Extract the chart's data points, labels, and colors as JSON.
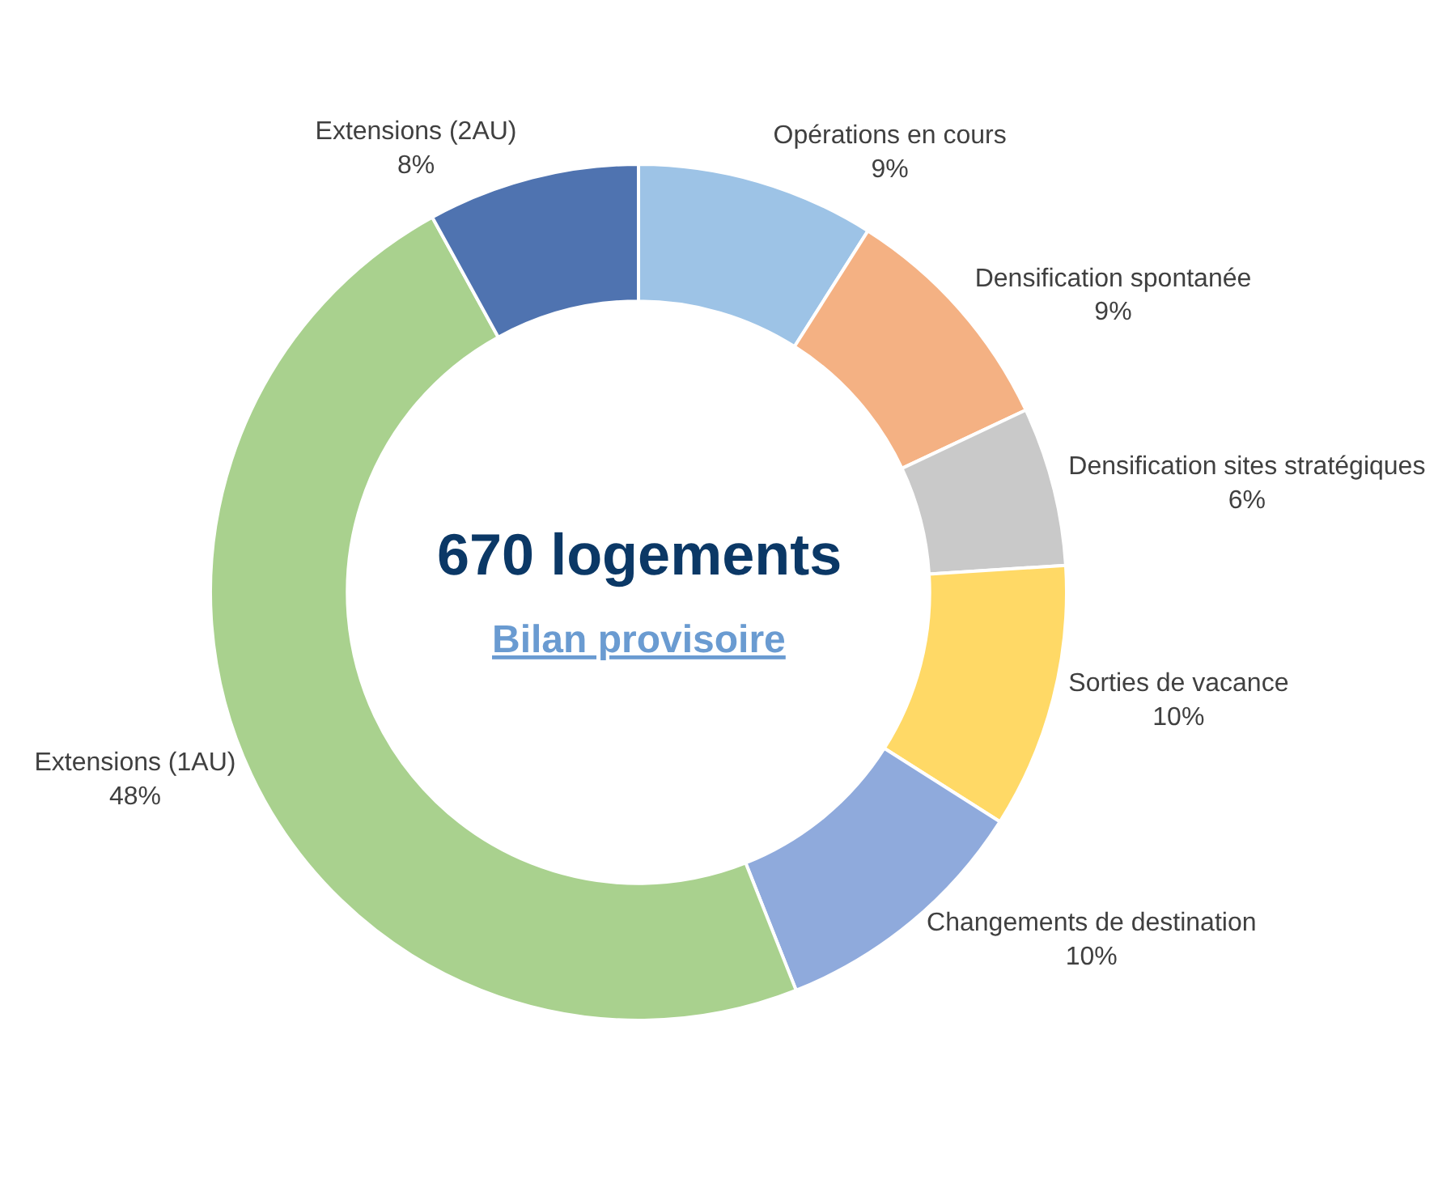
{
  "chart_data": {
    "type": "donut",
    "categories": [
      "Opérations en cours",
      "Densification spontanée",
      "Densification sites stratégiques",
      "Sorties de vacance",
      "Changements de destination",
      "Extensions (1AU)",
      "Extensions (2AU)"
    ],
    "values": [
      9,
      9,
      6,
      10,
      10,
      48,
      8
    ],
    "value_labels": [
      "9%",
      "9%",
      "6%",
      "10%",
      "10%",
      "48%",
      "8%"
    ],
    "colors": [
      "#9dc3e6",
      "#f4b183",
      "#c9c9c9",
      "#ffd966",
      "#8faadc",
      "#a9d18e",
      "#4f73b0"
    ],
    "annotations": [
      "670 logements",
      "Bilan provisoire"
    ],
    "legend": false
  }
}
